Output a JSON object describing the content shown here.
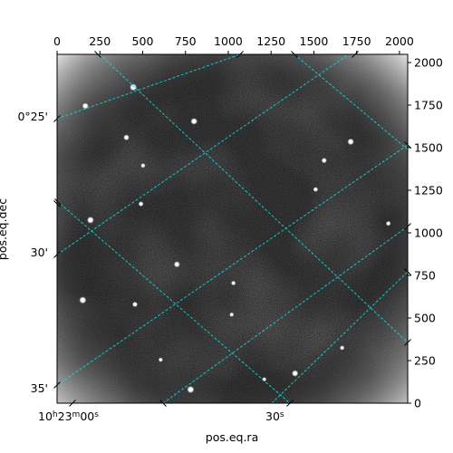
{
  "chart_data": {
    "type": "image",
    "xlabel": "pos.eq.ra",
    "ylabel": "pos.eq.dec",
    "pixel_axes": {
      "x_range": [
        0,
        2048
      ],
      "y_range": [
        0,
        2048
      ],
      "x_ticks": [
        0,
        250,
        500,
        750,
        1000,
        1250,
        1500,
        1750,
        2000
      ],
      "y_ticks": [
        0,
        250,
        500,
        750,
        1000,
        1250,
        1500,
        1750,
        2000
      ]
    },
    "ra_tick_labels": [
      {
        "text": "10h23m00s",
        "sup": [
          "h",
          "m",
          "s"
        ]
      },
      {
        "text": "30s",
        "sup": [
          "s"
        ]
      }
    ],
    "dec_tick_labels": [
      "0°25'",
      "30'",
      "35'"
    ],
    "image_colormap": "gray",
    "grid_color": "#00e5e5",
    "grid": true,
    "stars": [
      {
        "x": 445,
        "y": 1855,
        "brightness": 1.0
      },
      {
        "x": 165,
        "y": 1745,
        "brightness": 0.8
      },
      {
        "x": 800,
        "y": 1655,
        "brightness": 0.9
      },
      {
        "x": 405,
        "y": 1560,
        "brightness": 0.7
      },
      {
        "x": 1715,
        "y": 1535,
        "brightness": 0.85
      },
      {
        "x": 1560,
        "y": 1425,
        "brightness": 0.6
      },
      {
        "x": 502,
        "y": 1395,
        "brightness": 0.45
      },
      {
        "x": 1510,
        "y": 1255,
        "brightness": 0.5
      },
      {
        "x": 490,
        "y": 1170,
        "brightness": 0.55
      },
      {
        "x": 195,
        "y": 1075,
        "brightness": 0.95
      },
      {
        "x": 1935,
        "y": 1055,
        "brightness": 0.5
      },
      {
        "x": 700,
        "y": 815,
        "brightness": 0.75
      },
      {
        "x": 150,
        "y": 605,
        "brightness": 1.0
      },
      {
        "x": 455,
        "y": 580,
        "brightness": 0.6
      },
      {
        "x": 1030,
        "y": 705,
        "brightness": 0.45
      },
      {
        "x": 1020,
        "y": 520,
        "brightness": 0.4
      },
      {
        "x": 1665,
        "y": 325,
        "brightness": 0.45
      },
      {
        "x": 1390,
        "y": 175,
        "brightness": 0.85
      },
      {
        "x": 780,
        "y": 80,
        "brightness": 1.0
      },
      {
        "x": 1210,
        "y": 140,
        "brightness": 0.4
      },
      {
        "x": 605,
        "y": 255,
        "brightness": 0.4
      }
    ]
  }
}
